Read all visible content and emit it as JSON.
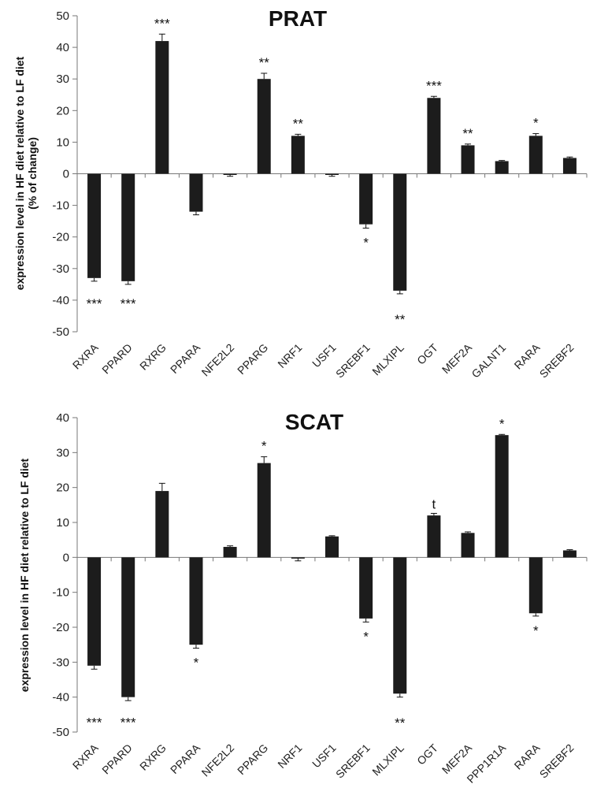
{
  "chart_data": [
    {
      "type": "bar",
      "title": "PRAT",
      "ylabel": [
        "expression level in HF diet relative to LF diet",
        "(% of change)"
      ],
      "ylim": [
        -50,
        50
      ],
      "yticks": [
        -50,
        -40,
        -30,
        -20,
        -10,
        0,
        10,
        20,
        30,
        40,
        50
      ],
      "categories": [
        "RXRA",
        "PPARD",
        "RXRG",
        "PPARA",
        "NFE2L2",
        "PPARG",
        "NRF1",
        "USF1",
        "SREBF1",
        "MLXIPL",
        "OGT",
        "MEF2A",
        "GALNT1",
        "RARA",
        "SREBF2"
      ],
      "values": [
        -33,
        -34,
        42,
        -12,
        -0.3,
        30,
        12,
        -0.3,
        -16,
        -37,
        24,
        9,
        4,
        12,
        5
      ],
      "errors": [
        1,
        1,
        2.2,
        1,
        0.5,
        1.8,
        0.5,
        0.5,
        1.2,
        1,
        0.5,
        0.4,
        0.2,
        0.7,
        0.3
      ],
      "significance": [
        "***",
        "***",
        "***",
        "",
        "",
        "**",
        "**",
        "",
        "*",
        "**",
        "***",
        "**",
        "",
        "*",
        ""
      ]
    },
    {
      "type": "bar",
      "title": "SCAT",
      "ylabel": [
        "expression level in HF diet relative to LF diet"
      ],
      "ylim": [
        -50,
        40
      ],
      "yticks": [
        -50,
        -40,
        -30,
        -20,
        -10,
        0,
        10,
        20,
        30,
        40
      ],
      "categories": [
        "RXRA",
        "PPARD",
        "RXRG",
        "PPARA",
        "NFE2L2",
        "PPARG",
        "NRF1",
        "USF1",
        "SREBF1",
        "MLXIPL",
        "OGT",
        "MEF2A",
        "PPP1R1A",
        "RARA",
        "SREBF2"
      ],
      "values": [
        -31,
        -40,
        19,
        -25,
        3,
        27,
        -0.2,
        6,
        -17.5,
        -39,
        12,
        7,
        35,
        -16,
        2
      ],
      "errors": [
        1,
        1,
        2.2,
        1,
        0.3,
        1.8,
        0.8,
        0.2,
        1,
        1,
        0.6,
        0.3,
        0.2,
        0.8,
        0.2
      ],
      "significance": [
        "***",
        "***",
        "",
        "*",
        "",
        "*",
        "",
        "",
        "*",
        "**",
        "t",
        "",
        "*",
        "*",
        ""
      ]
    }
  ]
}
